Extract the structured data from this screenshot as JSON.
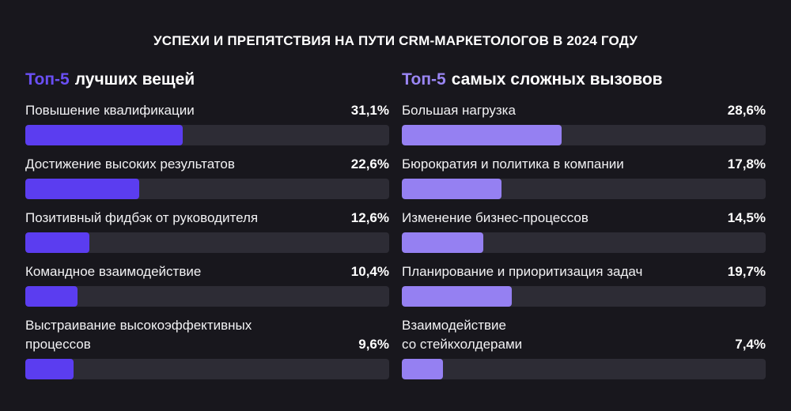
{
  "title": "УСПЕХИ И ПРЕПЯТСТВИЯ НА ПУТИ CRM-МАРКЕТОЛОГОВ В 2024 ГОДУ",
  "chart_data": [
    {
      "type": "bar",
      "orientation": "horizontal",
      "heading_accent": "Топ-5",
      "heading_rest": "лучших вещей",
      "color": "#5b3df0",
      "accent_color": "#6a4ff5",
      "xlim": [
        0,
        72
      ],
      "items": [
        {
          "label": "Повышение квалификации",
          "value": 31.1,
          "value_label": "31,1%"
        },
        {
          "label": "Достижение высоких результатов",
          "value": 22.6,
          "value_label": "22,6%"
        },
        {
          "label": "Позитивный фидбэк от руководителя",
          "value": 12.6,
          "value_label": "12,6%"
        },
        {
          "label": "Командное взаимодействие",
          "value": 10.4,
          "value_label": "10,4%"
        },
        {
          "label": "Выстраивание высокоэффективных процессов",
          "value": 9.6,
          "value_label": "9,6%"
        }
      ]
    },
    {
      "type": "bar",
      "orientation": "horizontal",
      "heading_accent": "Топ-5",
      "heading_rest": "самых сложных вызовов",
      "color": "#9580f2",
      "accent_color": "#9a86f4",
      "xlim": [
        0,
        65
      ],
      "items": [
        {
          "label": "Большая нагрузка",
          "value": 28.6,
          "value_label": "28,6%"
        },
        {
          "label": "Бюрократия и политика в компании",
          "value": 17.8,
          "value_label": "17,8%"
        },
        {
          "label": "Изменение бизнес-процессов",
          "value": 14.5,
          "value_label": "14,5%"
        },
        {
          "label": "Планирование и приоритизация задач",
          "value": 19.7,
          "value_label": "19,7%"
        },
        {
          "label": "Взаимодействие со стейкхолдерами",
          "value": 7.4,
          "value_label": "7,4%"
        }
      ]
    }
  ]
}
